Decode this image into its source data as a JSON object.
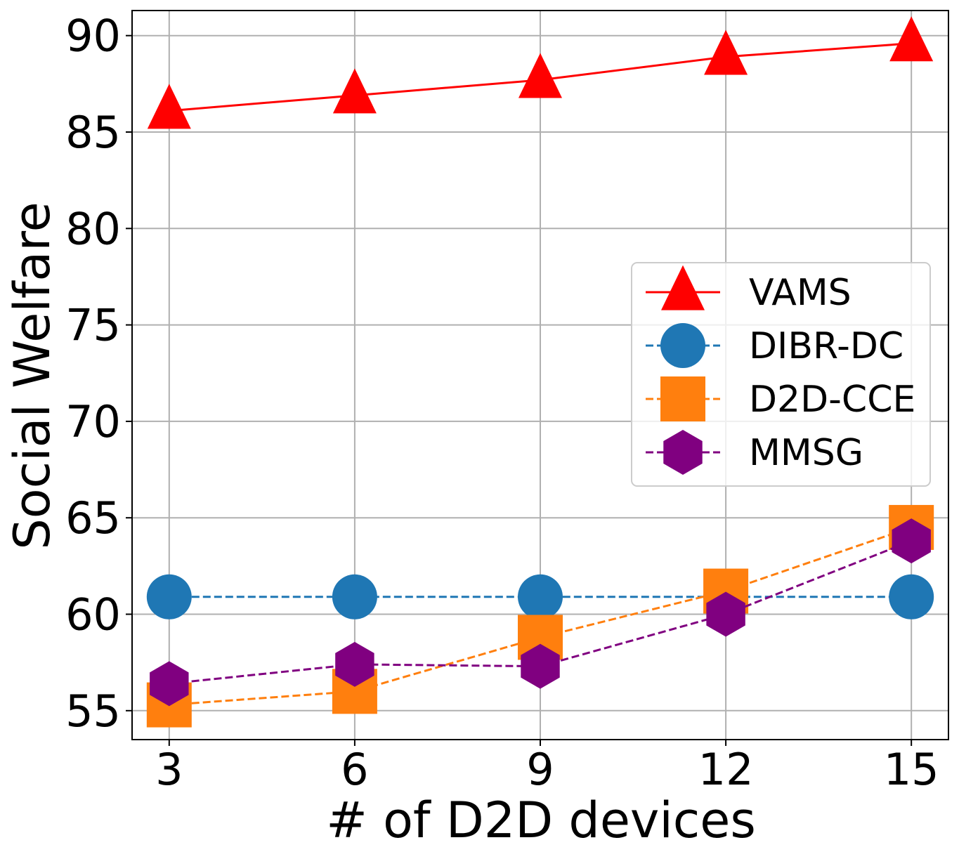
{
  "chart_data": {
    "type": "line",
    "xlabel": "# of D2D devices",
    "ylabel": "Social Welfare",
    "x": [
      3,
      6,
      9,
      12,
      15
    ],
    "xlim": [
      2.4,
      15.6
    ],
    "ylim": [
      53.5,
      91.3
    ],
    "xticks": [
      3,
      6,
      9,
      12,
      15
    ],
    "yticks": [
      55,
      60,
      65,
      70,
      75,
      80,
      85,
      90
    ],
    "grid": true,
    "legend_position": "center-right",
    "series": [
      {
        "name": "VAMS",
        "values": [
          86.1,
          86.9,
          87.7,
          88.9,
          89.6
        ],
        "color": "#ff0000",
        "linestyle": "solid",
        "marker": "triangle"
      },
      {
        "name": "DIBR-DC",
        "values": [
          60.9,
          60.9,
          60.9,
          60.9,
          60.9
        ],
        "color": "#1f77b4",
        "linestyle": "dashed",
        "marker": "circle"
      },
      {
        "name": "D2D-CCE",
        "values": [
          55.3,
          56.0,
          58.8,
          61.2,
          64.5
        ],
        "color": "#ff7f0e",
        "linestyle": "dashed",
        "marker": "square"
      },
      {
        "name": "MMSG",
        "values": [
          56.4,
          57.4,
          57.3,
          60.0,
          63.8
        ],
        "color": "#800080",
        "linestyle": "dashed",
        "marker": "hexagon"
      }
    ]
  }
}
